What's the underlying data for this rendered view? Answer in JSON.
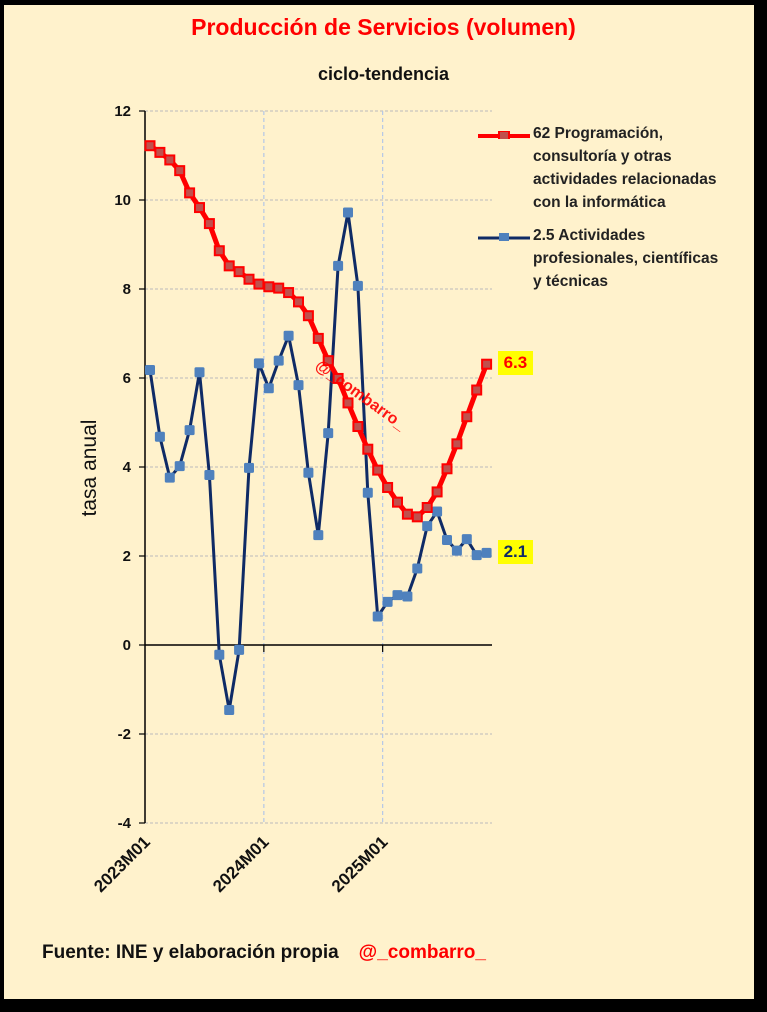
{
  "chart_data": {
    "type": "line",
    "title": "Producción de Servicios  (volumen)",
    "subtitle": "ciclo-tendencia",
    "xlabel": "",
    "ylabel": "tasa anual",
    "ylim": [
      -4,
      12
    ],
    "yticks": [
      12,
      10,
      8,
      6,
      4,
      2,
      0,
      -2,
      -4
    ],
    "grid": true,
    "legend_position": "right",
    "x": [
      "2023M01",
      "2023M02",
      "2023M03",
      "2023M04",
      "2023M05",
      "2023M06",
      "2023M07",
      "2023M08",
      "2023M09",
      "2023M10",
      "2023M11",
      "2023M12",
      "2024M01",
      "2024M02",
      "2024M03",
      "2024M04",
      "2024M05",
      "2024M06",
      "2024M07",
      "2024M08",
      "2024M09",
      "2024M10",
      "2024M11",
      "2024M12",
      "2025M01",
      "2025M02",
      "2025M03",
      "2025M04",
      "2025M05",
      "2025M06",
      "2025M07",
      "2025M08",
      "2025M09",
      "2025M10",
      "2025M11"
    ],
    "xtick_labels": [
      "2023M01",
      "2024M01",
      "2025M01"
    ],
    "series": [
      {
        "name": "62 Programación, consultoría y otras actividades relacionadas con la informática",
        "legend_lines": [
          "62 Programación,",
          "consultoría y otras",
          "actividades relacionadas",
          "con la informática"
        ],
        "color": "#FF0000",
        "marker_color": "#C0504D",
        "values": [
          11.22,
          11.07,
          10.9,
          10.66,
          10.16,
          9.83,
          9.47,
          8.86,
          8.52,
          8.39,
          8.22,
          8.11,
          8.05,
          8.02,
          7.92,
          7.71,
          7.4,
          6.89,
          6.39,
          5.99,
          5.44,
          4.91,
          4.4,
          3.93,
          3.54,
          3.21,
          2.94,
          2.88,
          3.09,
          3.44,
          3.96,
          4.52,
          5.13,
          5.73,
          6.31
        ],
        "last_label": "6.3",
        "last_label_color": "#FF0000"
      },
      {
        "name": "2.5 Actividades profesionales, científicas y técnicas",
        "legend_lines": [
          "2.5 Actividades",
          "profesionales, científicas",
          "y técnicas"
        ],
        "color": "#0F2B66",
        "marker_color": "#4F81BD",
        "values": [
          6.18,
          4.68,
          3.76,
          4.02,
          4.83,
          6.13,
          3.82,
          -0.22,
          -1.46,
          -0.11,
          3.98,
          6.33,
          5.77,
          6.39,
          6.95,
          5.84,
          3.87,
          2.47,
          4.76,
          8.52,
          9.72,
          8.07,
          3.42,
          0.64,
          0.97,
          1.12,
          1.09,
          1.72,
          2.67,
          3.0,
          2.36,
          2.12,
          2.38,
          2.02,
          2.07
        ],
        "last_label": "2.1",
        "last_label_color": "#0F2B66"
      }
    ],
    "annotations": [
      "@_combarro_"
    ],
    "label_bg_color": "#FFFF00"
  },
  "footer": {
    "source": "Fuente: INE y elaboración propia",
    "handle": "@_combarro_"
  }
}
